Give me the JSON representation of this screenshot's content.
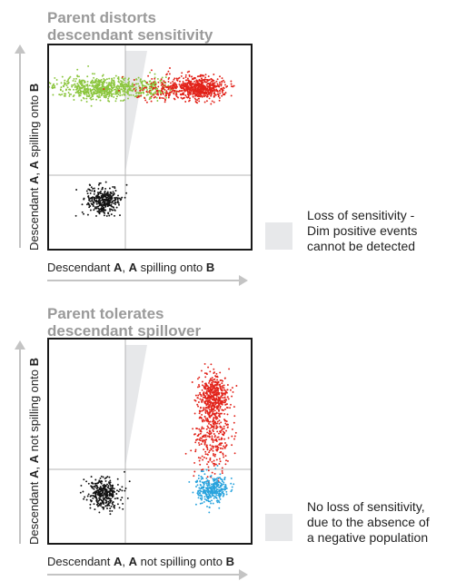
{
  "panels": [
    {
      "title_lines": [
        "Parent distorts",
        "descendant sensitivity"
      ],
      "ylabel": {
        "pre": "Descendant ",
        "b1": "A",
        "mid": ", ",
        "b2": "A",
        "post": " spilling onto ",
        "b3": "B"
      },
      "xlabel": {
        "pre": "Descendant ",
        "b1": "A",
        "mid": ", ",
        "b2": "A",
        "post": " spilling onto ",
        "b3": "B"
      },
      "legend_lines": [
        "Loss of sensitivity -",
        "Dim positive events",
        "cannot be detected"
      ],
      "populations": [
        "black negative",
        "green dim positive",
        "red bright positive"
      ]
    },
    {
      "title_lines": [
        "Parent tolerates",
        "descendant spillover"
      ],
      "ylabel": {
        "pre": "Descendant ",
        "b1": "A",
        "mid": ", ",
        "b2": "A",
        "post": " not spilling onto ",
        "b3": "B"
      },
      "xlabel": {
        "pre": "Descendant ",
        "b1": "A",
        "mid": ", ",
        "b2": "A",
        "post": " not spilling onto ",
        "b3": "B"
      },
      "legend_lines": [
        "No loss of sensitivity,",
        "due to the absence of",
        "a negative population"
      ],
      "populations": [
        "black negative",
        "red positive",
        "blue positive"
      ]
    }
  ],
  "colors": {
    "negative": "#111111",
    "dim_positive": "#8cc63f",
    "red_positive": "#e2231a",
    "blue_positive": "#29a3dd",
    "wedge": "#e7e8ea",
    "arrow": "#c4c4c4",
    "title": "#9a9a9a"
  }
}
